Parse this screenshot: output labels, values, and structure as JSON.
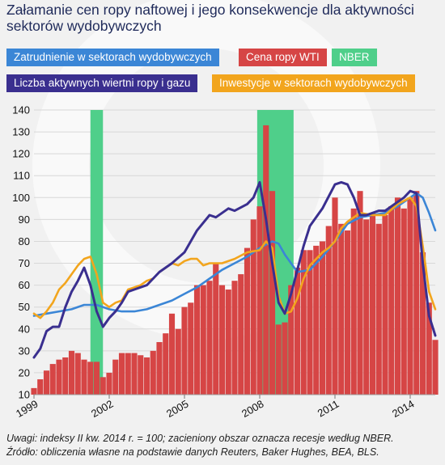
{
  "title": "Załamanie cen ropy naftowej i jego konsekwencje dla aktywności sektorów wydobywczych",
  "note_line1": "Uwagi: indeksy II kw. 2014 r. = 100; zacieniony obszar oznacza recesje według NBER.",
  "note_line2": "Źródło: obliczenia własne na podstawie danych Reuters, Baker Hughes, BEA, BLS.",
  "legend": {
    "employment": "Zatrudnienie w sektorach wydobywczych",
    "wti": "Cena ropy WTI",
    "nber": "NBER",
    "rigs": "Liczba aktywnych wiertni ropy i gazu",
    "investment": "Inwestycje w sektorach wydobywczych"
  },
  "colors": {
    "employment": "#3b86d6",
    "wti": "#d64545",
    "nber": "#4fcf8a",
    "rigs": "#3a2f8f",
    "investment": "#f2a51d",
    "title": "#1f2a5a"
  },
  "chart_data": {
    "type": "bar+line",
    "ylim": [
      10,
      140
    ],
    "yticks": [
      "10",
      "20",
      "30",
      "40",
      "50",
      "60",
      "70",
      "80",
      "90",
      "100",
      "110",
      "120",
      "130",
      "140"
    ],
    "xlim": [
      1999.0,
      2015.0
    ],
    "xticks": [
      "1999",
      "2002",
      "2005",
      "2008",
      "2011",
      "2014"
    ],
    "recessions": [
      [
        2001.25,
        2001.75
      ],
      [
        2007.9,
        2009.35
      ]
    ],
    "wti_bars": [
      [
        1999.0,
        13
      ],
      [
        1999.25,
        17
      ],
      [
        1999.5,
        21
      ],
      [
        1999.75,
        24
      ],
      [
        2000.0,
        26
      ],
      [
        2000.25,
        27
      ],
      [
        2000.5,
        30
      ],
      [
        2000.75,
        29
      ],
      [
        2001.0,
        26
      ],
      [
        2001.25,
        25
      ],
      [
        2001.5,
        25
      ],
      [
        2001.75,
        18
      ],
      [
        2002.0,
        20
      ],
      [
        2002.25,
        26
      ],
      [
        2002.5,
        29
      ],
      [
        2002.75,
        29
      ],
      [
        2003.0,
        29
      ],
      [
        2003.25,
        28
      ],
      [
        2003.5,
        27
      ],
      [
        2003.75,
        30
      ],
      [
        2004.0,
        34
      ],
      [
        2004.25,
        38
      ],
      [
        2004.5,
        47
      ],
      [
        2004.75,
        40
      ],
      [
        2005.0,
        50
      ],
      [
        2005.25,
        52
      ],
      [
        2005.5,
        60
      ],
      [
        2005.75,
        60
      ],
      [
        2006.0,
        62
      ],
      [
        2006.25,
        70
      ],
      [
        2006.5,
        60
      ],
      [
        2006.75,
        58
      ],
      [
        2007.0,
        62
      ],
      [
        2007.25,
        65
      ],
      [
        2007.5,
        77
      ],
      [
        2007.75,
        90
      ],
      [
        2008.0,
        96
      ],
      [
        2008.25,
        133
      ],
      [
        2008.5,
        103
      ],
      [
        2008.75,
        42
      ],
      [
        2009.0,
        43
      ],
      [
        2009.25,
        60
      ],
      [
        2009.5,
        68
      ],
      [
        2009.75,
        76
      ],
      [
        2010.0,
        76
      ],
      [
        2010.25,
        78
      ],
      [
        2010.5,
        80
      ],
      [
        2010.75,
        87
      ],
      [
        2011.0,
        100
      ],
      [
        2011.25,
        88
      ],
      [
        2011.5,
        85
      ],
      [
        2011.75,
        95
      ],
      [
        2012.0,
        103
      ],
      [
        2012.25,
        90
      ],
      [
        2012.5,
        93
      ],
      [
        2012.75,
        88
      ],
      [
        2013.0,
        92
      ],
      [
        2013.25,
        96
      ],
      [
        2013.5,
        100
      ],
      [
        2013.75,
        95
      ],
      [
        2014.0,
        100
      ],
      [
        2014.25,
        103
      ],
      [
        2014.5,
        75
      ],
      [
        2014.75,
        52
      ],
      [
        2015.0,
        35
      ]
    ],
    "series": [
      {
        "name": "Zatrudnienie w sektorach wydobywczych",
        "key": "employment",
        "x": [
          1999.0,
          1999.5,
          2000.0,
          2000.5,
          2001.0,
          2001.5,
          2002.0,
          2002.5,
          2003.0,
          2003.5,
          2004.0,
          2004.5,
          2005.0,
          2005.5,
          2006.0,
          2006.5,
          2007.0,
          2007.5,
          2008.0,
          2008.5,
          2008.75,
          2009.0,
          2009.5,
          2010.0,
          2010.5,
          2011.0,
          2011.5,
          2012.0,
          2012.5,
          2013.0,
          2013.5,
          2014.0,
          2014.25,
          2014.5,
          2014.75,
          2015.0
        ],
        "y": [
          46,
          47,
          48,
          49,
          51,
          51,
          49,
          48,
          48,
          49,
          51,
          53,
          56,
          59,
          63,
          67,
          70,
          73,
          77,
          80,
          79,
          74,
          66,
          67,
          73,
          80,
          88,
          91,
          92,
          93,
          96,
          100,
          102,
          100,
          93,
          85
        ]
      },
      {
        "name": "Cena ropy WTI",
        "key": "wti_line",
        "x": [],
        "y": []
      },
      {
        "name": "Liczba aktywnych wiertni ropy i gazu",
        "key": "rigs",
        "x": [
          1999.0,
          1999.25,
          1999.5,
          1999.75,
          2000.0,
          2000.25,
          2000.5,
          2000.75,
          2001.0,
          2001.25,
          2001.5,
          2001.75,
          2002.0,
          2002.25,
          2002.5,
          2002.75,
          2003.0,
          2003.5,
          2004.0,
          2004.5,
          2005.0,
          2005.5,
          2006.0,
          2006.25,
          2006.5,
          2006.75,
          2007.0,
          2007.5,
          2007.75,
          2008.0,
          2008.25,
          2008.5,
          2008.75,
          2009.0,
          2009.25,
          2009.5,
          2009.75,
          2010.0,
          2010.5,
          2011.0,
          2011.25,
          2011.5,
          2011.75,
          2012.0,
          2012.25,
          2012.5,
          2012.75,
          2013.0,
          2013.5,
          2013.75,
          2014.0,
          2014.25,
          2014.5,
          2014.75,
          2015.0
        ],
        "y": [
          27,
          31,
          39,
          41,
          41,
          50,
          57,
          62,
          68,
          60,
          48,
          41,
          45,
          48,
          52,
          57,
          58,
          60,
          66,
          70,
          75,
          85,
          92,
          91,
          93,
          95,
          94,
          97,
          100,
          107,
          90,
          70,
          52,
          47,
          56,
          67,
          78,
          87,
          95,
          106,
          107,
          106,
          100,
          92,
          92,
          93,
          94,
          94,
          98,
          100,
          103,
          102,
          70,
          46,
          37
        ]
      },
      {
        "name": "Inwestycje w sektorach wydobywczych",
        "key": "investment",
        "x": [
          1999.0,
          1999.25,
          1999.5,
          1999.75,
          2000.0,
          2000.25,
          2000.5,
          2000.75,
          2001.0,
          2001.25,
          2001.5,
          2001.75,
          2002.0,
          2002.25,
          2002.5,
          2002.75,
          2003.0,
          2003.25,
          2003.5,
          2003.75,
          2004.0,
          2004.25,
          2004.5,
          2004.75,
          2005.0,
          2005.25,
          2005.5,
          2005.75,
          2006.0,
          2006.5,
          2007.0,
          2007.5,
          2008.0,
          2008.25,
          2008.5,
          2008.75,
          2009.0,
          2009.25,
          2009.5,
          2009.75,
          2010.0,
          2010.25,
          2010.5,
          2010.75,
          2011.0,
          2011.25,
          2011.5,
          2011.75,
          2012.0,
          2012.5,
          2013.0,
          2013.5,
          2014.0,
          2014.25,
          2014.5,
          2014.75,
          2015.0
        ],
        "y": [
          47,
          45,
          48,
          52,
          58,
          61,
          65,
          69,
          72,
          73,
          65,
          52,
          50,
          52,
          53,
          58,
          59,
          60,
          62,
          63,
          66,
          68,
          70,
          69,
          71,
          72,
          72,
          69,
          70,
          70,
          72,
          75,
          76,
          80,
          77,
          55,
          47,
          48,
          54,
          63,
          69,
          72,
          75,
          77,
          80,
          86,
          89,
          91,
          93,
          92,
          92,
          97,
          100,
          96,
          78,
          57,
          49
        ]
      }
    ]
  }
}
